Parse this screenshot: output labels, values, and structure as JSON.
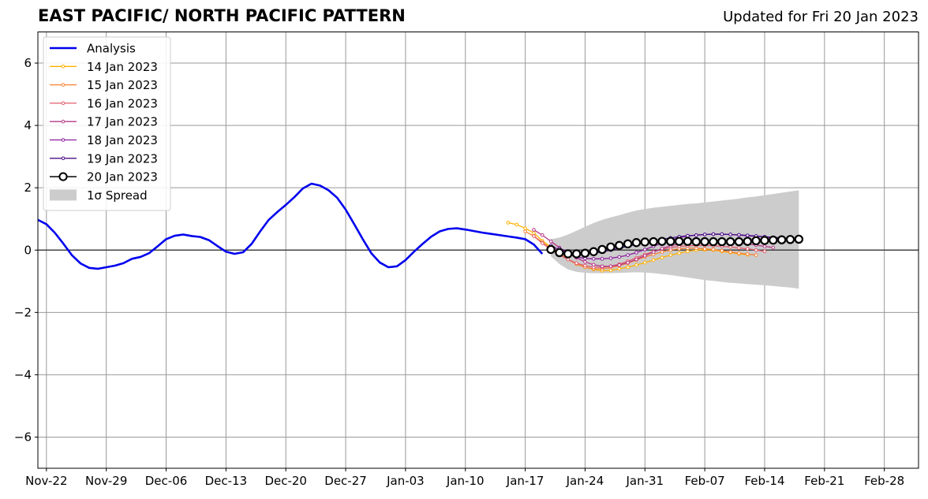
{
  "header": {
    "title": "EAST PACIFIC/ NORTH PACIFIC PATTERN",
    "updated": "Updated for Fri 20 Jan 2023"
  },
  "chart_data": {
    "type": "line",
    "title": "EAST PACIFIC/ NORTH PACIFIC PATTERN",
    "subtitle": "Updated for Fri 20 Jan 2023",
    "xlabel": "",
    "ylabel": "",
    "xlim": [
      "2022-11-21",
      "2023-03-04"
    ],
    "ylim": [
      -7,
      7
    ],
    "grid": true,
    "legend_position": "top-left",
    "x_ticks": [
      "2022-11-22",
      "2022-11-29",
      "2022-12-06",
      "2022-12-13",
      "2022-12-20",
      "2022-12-27",
      "2023-01-03",
      "2023-01-10",
      "2023-01-17",
      "2023-01-24",
      "2023-01-31",
      "2023-02-07",
      "2023-02-14",
      "2023-02-21",
      "2023-02-28"
    ],
    "x_tick_labels": [
      "Nov-22",
      "Nov-29",
      "Dec-06",
      "Dec-13",
      "Dec-20",
      "Dec-27",
      "Jan-03",
      "Jan-10",
      "Jan-17",
      "Jan-24",
      "Jan-31",
      "Feb-07",
      "Feb-14",
      "Feb-21",
      "Feb-28"
    ],
    "y_ticks": [
      -6,
      -4,
      -2,
      0,
      2,
      4,
      6
    ],
    "y_tick_labels": [
      "−6",
      "−4",
      "−2",
      "0",
      "2",
      "4",
      "6"
    ],
    "analysis": {
      "name": "Analysis",
      "color": "#0000ee",
      "x": [
        "2022-11-21",
        "2022-11-22",
        "2022-11-23",
        "2022-11-24",
        "2022-11-25",
        "2022-11-26",
        "2022-11-27",
        "2022-11-28",
        "2022-11-29",
        "2022-11-30",
        "2022-12-01",
        "2022-12-02",
        "2022-12-03",
        "2022-12-04",
        "2022-12-05",
        "2022-12-06",
        "2022-12-07",
        "2022-12-08",
        "2022-12-09",
        "2022-12-10",
        "2022-12-11",
        "2022-12-12",
        "2022-12-13",
        "2022-12-14",
        "2022-12-15",
        "2022-12-16",
        "2022-12-17",
        "2022-12-18",
        "2022-12-19",
        "2022-12-20",
        "2022-12-21",
        "2022-12-22",
        "2022-12-23",
        "2022-12-24",
        "2022-12-25",
        "2022-12-26",
        "2022-12-27",
        "2022-12-28",
        "2022-12-29",
        "2022-12-30",
        "2022-12-31",
        "2023-01-01",
        "2023-01-02",
        "2023-01-03",
        "2023-01-04",
        "2023-01-05",
        "2023-01-06",
        "2023-01-07",
        "2023-01-08",
        "2023-01-09",
        "2023-01-10",
        "2023-01-11",
        "2023-01-12",
        "2023-01-13",
        "2023-01-14",
        "2023-01-15",
        "2023-01-16",
        "2023-01-17",
        "2023-01-18",
        "2023-01-19"
      ],
      "values": [
        0.97,
        0.83,
        0.55,
        0.2,
        -0.17,
        -0.43,
        -0.57,
        -0.6,
        -0.55,
        -0.5,
        -0.42,
        -0.28,
        -0.22,
        -0.1,
        0.12,
        0.35,
        0.46,
        0.5,
        0.45,
        0.42,
        0.32,
        0.13,
        -0.05,
        -0.12,
        -0.07,
        0.2,
        0.6,
        0.97,
        1.22,
        1.45,
        1.7,
        1.98,
        2.13,
        2.07,
        1.92,
        1.68,
        1.3,
        0.83,
        0.35,
        -0.1,
        -0.4,
        -0.55,
        -0.52,
        -0.32,
        -0.05,
        0.2,
        0.43,
        0.6,
        0.68,
        0.7,
        0.66,
        0.61,
        0.56,
        0.52,
        0.48,
        0.44,
        0.4,
        0.35,
        0.18,
        -0.12
      ]
    },
    "spread": {
      "name": "1σ Spread",
      "color": "#cccccc",
      "x": [
        "2023-01-20",
        "2023-01-21",
        "2023-01-22",
        "2023-01-23",
        "2023-01-24",
        "2023-01-25",
        "2023-01-26",
        "2023-01-27",
        "2023-01-28",
        "2023-01-29",
        "2023-01-30",
        "2023-01-31",
        "2023-02-01",
        "2023-02-02",
        "2023-02-03",
        "2023-02-04",
        "2023-02-05",
        "2023-02-06",
        "2023-02-07",
        "2023-02-08",
        "2023-02-09",
        "2023-02-10",
        "2023-02-11",
        "2023-02-12",
        "2023-02-13",
        "2023-02-14",
        "2023-02-15",
        "2023-02-16",
        "2023-02-17",
        "2023-02-18"
      ],
      "upper": [
        0.35,
        0.4,
        0.5,
        0.62,
        0.75,
        0.87,
        0.97,
        1.05,
        1.12,
        1.2,
        1.27,
        1.32,
        1.36,
        1.39,
        1.42,
        1.45,
        1.48,
        1.5,
        1.53,
        1.56,
        1.59,
        1.62,
        1.65,
        1.69,
        1.72,
        1.76,
        1.8,
        1.84,
        1.88,
        1.92
      ],
      "lower": [
        -0.2,
        -0.45,
        -0.62,
        -0.7,
        -0.73,
        -0.74,
        -0.74,
        -0.74,
        -0.73,
        -0.72,
        -0.71,
        -0.72,
        -0.74,
        -0.77,
        -0.8,
        -0.84,
        -0.88,
        -0.92,
        -0.96,
        -0.99,
        -1.02,
        -1.05,
        -1.07,
        -1.09,
        -1.11,
        -1.13,
        -1.15,
        -1.18,
        -1.2,
        -1.24
      ]
    },
    "series": [
      {
        "name": "14 Jan 2023",
        "color": "#ffb000",
        "x": [
          "2023-01-15",
          "2023-01-16",
          "2023-01-17",
          "2023-01-18",
          "2023-01-19",
          "2023-01-20",
          "2023-01-21",
          "2023-01-22",
          "2023-01-23",
          "2023-01-24",
          "2023-01-25",
          "2023-01-26",
          "2023-01-27",
          "2023-01-28",
          "2023-01-29",
          "2023-01-30",
          "2023-01-31",
          "2023-02-01",
          "2023-02-02",
          "2023-02-03",
          "2023-02-04",
          "2023-02-05",
          "2023-02-06",
          "2023-02-07",
          "2023-02-08",
          "2023-02-09",
          "2023-02-10",
          "2023-02-11",
          "2023-02-12"
        ],
        "values": [
          0.88,
          0.82,
          0.7,
          0.55,
          0.3,
          0.1,
          -0.1,
          -0.3,
          -0.45,
          -0.55,
          -0.62,
          -0.66,
          -0.65,
          -0.6,
          -0.55,
          -0.48,
          -0.4,
          -0.32,
          -0.24,
          -0.16,
          -0.1,
          -0.04,
          0.0,
          0.01,
          0.0,
          -0.04,
          -0.08,
          -0.12,
          -0.15
        ]
      },
      {
        "name": "15 Jan 2023",
        "color": "#f78234",
        "x": [
          "2023-01-17",
          "2023-01-18",
          "2023-01-19",
          "2023-01-20",
          "2023-01-21",
          "2023-01-22",
          "2023-01-23",
          "2023-01-24",
          "2023-01-25",
          "2023-01-26",
          "2023-01-27",
          "2023-01-28",
          "2023-01-29",
          "2023-01-30",
          "2023-01-31",
          "2023-02-01",
          "2023-02-02",
          "2023-02-03",
          "2023-02-04",
          "2023-02-05",
          "2023-02-06",
          "2023-02-07",
          "2023-02-08",
          "2023-02-09",
          "2023-02-10",
          "2023-02-11",
          "2023-02-12",
          "2023-02-13"
        ],
        "values": [
          0.6,
          0.45,
          0.25,
          0.05,
          -0.12,
          -0.3,
          -0.45,
          -0.55,
          -0.6,
          -0.6,
          -0.56,
          -0.5,
          -0.42,
          -0.32,
          -0.22,
          -0.14,
          -0.06,
          0.0,
          0.04,
          0.06,
          0.06,
          0.04,
          0.02,
          -0.02,
          -0.06,
          -0.1,
          -0.13,
          -0.16
        ]
      },
      {
        "name": "16 Jan 2023",
        "color": "#e15c6d",
        "x": [
          "2023-01-18",
          "2023-01-19",
          "2023-01-20",
          "2023-01-21",
          "2023-01-22",
          "2023-01-23",
          "2023-01-24",
          "2023-01-25",
          "2023-01-26",
          "2023-01-27",
          "2023-01-28",
          "2023-01-29",
          "2023-01-30",
          "2023-01-31",
          "2023-02-01",
          "2023-02-02",
          "2023-02-03",
          "2023-02-04",
          "2023-02-05",
          "2023-02-06",
          "2023-02-07",
          "2023-02-08",
          "2023-02-09",
          "2023-02-10",
          "2023-02-11",
          "2023-02-12",
          "2023-02-13",
          "2023-02-14"
        ],
        "values": [
          0.45,
          0.22,
          0.02,
          -0.15,
          -0.3,
          -0.42,
          -0.5,
          -0.55,
          -0.55,
          -0.52,
          -0.45,
          -0.36,
          -0.25,
          -0.14,
          -0.05,
          0.03,
          0.08,
          0.12,
          0.14,
          0.15,
          0.15,
          0.14,
          0.12,
          0.1,
          0.07,
          0.04,
          0.0,
          -0.04
        ]
      },
      {
        "name": "17 Jan 2023",
        "color": "#b63a8a",
        "x": [
          "2023-01-18",
          "2023-01-19",
          "2023-01-20",
          "2023-01-21",
          "2023-01-22",
          "2023-01-23",
          "2023-01-24",
          "2023-01-25",
          "2023-01-26",
          "2023-01-27",
          "2023-01-28",
          "2023-01-29",
          "2023-01-30",
          "2023-01-31",
          "2023-02-01",
          "2023-02-02",
          "2023-02-03",
          "2023-02-04",
          "2023-02-05",
          "2023-02-06",
          "2023-02-07",
          "2023-02-08",
          "2023-02-09",
          "2023-02-10",
          "2023-02-11",
          "2023-02-12",
          "2023-02-13",
          "2023-02-14",
          "2023-02-15"
        ],
        "values": [
          0.65,
          0.48,
          0.28,
          0.08,
          -0.1,
          -0.25,
          -0.38,
          -0.47,
          -0.52,
          -0.52,
          -0.48,
          -0.4,
          -0.3,
          -0.18,
          -0.06,
          0.05,
          0.14,
          0.2,
          0.24,
          0.26,
          0.27,
          0.27,
          0.26,
          0.25,
          0.23,
          0.2,
          0.16,
          0.12,
          0.08
        ]
      },
      {
        "name": "18 Jan 2023",
        "color": "#8a1e9c",
        "x": [
          "2023-01-20",
          "2023-01-21",
          "2023-01-22",
          "2023-01-23",
          "2023-01-24",
          "2023-01-25",
          "2023-01-26",
          "2023-01-27",
          "2023-01-28",
          "2023-01-29",
          "2023-01-30",
          "2023-01-31",
          "2023-02-01",
          "2023-02-02",
          "2023-02-03",
          "2023-02-04",
          "2023-02-05",
          "2023-02-06",
          "2023-02-07",
          "2023-02-08",
          "2023-02-09",
          "2023-02-10",
          "2023-02-11",
          "2023-02-12",
          "2023-02-13",
          "2023-02-14",
          "2023-02-15",
          "2023-02-16"
        ],
        "values": [
          0.15,
          0.0,
          -0.12,
          -0.22,
          -0.27,
          -0.28,
          -0.28,
          -0.26,
          -0.22,
          -0.16,
          -0.08,
          0.02,
          0.12,
          0.22,
          0.32,
          0.4,
          0.45,
          0.48,
          0.5,
          0.51,
          0.51,
          0.5,
          0.48,
          0.46,
          0.44,
          0.42,
          0.39,
          0.36
        ]
      },
      {
        "name": "19 Jan 2023",
        "color": "#4a0c87",
        "x": [
          "2023-01-21",
          "2023-01-22",
          "2023-01-23",
          "2023-01-24",
          "2023-01-25",
          "2023-01-26",
          "2023-01-27",
          "2023-01-28",
          "2023-01-29",
          "2023-01-30",
          "2023-01-31",
          "2023-02-01",
          "2023-02-02",
          "2023-02-03",
          "2023-02-04",
          "2023-02-05",
          "2023-02-06",
          "2023-02-07",
          "2023-02-08",
          "2023-02-09",
          "2023-02-10",
          "2023-02-11",
          "2023-02-12",
          "2023-02-13",
          "2023-02-14",
          "2023-02-15",
          "2023-02-16",
          "2023-02-17"
        ],
        "values": [
          0.05,
          -0.05,
          -0.1,
          -0.12,
          -0.1,
          -0.06,
          0.0,
          0.06,
          0.12,
          0.18,
          0.24,
          0.3,
          0.35,
          0.39,
          0.43,
          0.46,
          0.48,
          0.5,
          0.51,
          0.51,
          0.5,
          0.49,
          0.47,
          0.45,
          0.43,
          0.41,
          0.39,
          0.37
        ]
      },
      {
        "name": "20 Jan 2023",
        "color": "#000000",
        "x": [
          "2023-01-20",
          "2023-01-21",
          "2023-01-22",
          "2023-01-23",
          "2023-01-24",
          "2023-01-25",
          "2023-01-26",
          "2023-01-27",
          "2023-01-28",
          "2023-01-29",
          "2023-01-30",
          "2023-01-31",
          "2023-02-01",
          "2023-02-02",
          "2023-02-03",
          "2023-02-04",
          "2023-02-05",
          "2023-02-06",
          "2023-02-07",
          "2023-02-08",
          "2023-02-09",
          "2023-02-10",
          "2023-02-11",
          "2023-02-12",
          "2023-02-13",
          "2023-02-14",
          "2023-02-15",
          "2023-02-16",
          "2023-02-17",
          "2023-02-18"
        ],
        "values": [
          0.02,
          -0.08,
          -0.12,
          -0.12,
          -0.1,
          -0.05,
          0.02,
          0.1,
          0.15,
          0.2,
          0.24,
          0.26,
          0.27,
          0.28,
          0.28,
          0.28,
          0.28,
          0.27,
          0.27,
          0.27,
          0.27,
          0.27,
          0.27,
          0.28,
          0.3,
          0.31,
          0.32,
          0.33,
          0.34,
          0.35
        ]
      }
    ]
  }
}
